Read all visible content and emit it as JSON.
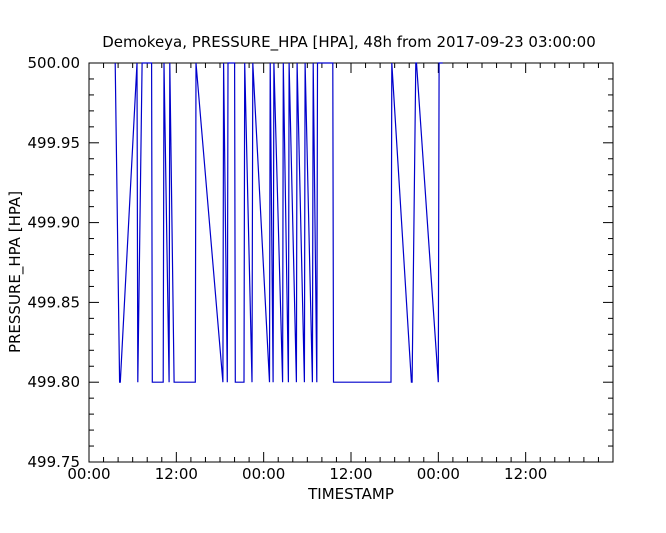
{
  "chart_data": {
    "type": "line",
    "title": "Demokeya, PRESSURE_HPA [HPA], 48h from  2017-09-23 03:00:00",
    "xlabel": "TIMESTAMP",
    "ylabel": "PRESSURE_HPA [HPA]",
    "xticks": [
      "00:00",
      "12:00",
      "00:00",
      "12:00",
      "00:00",
      "12:00"
    ],
    "yticks": [
      "499.75",
      "499.80",
      "499.85",
      "499.90",
      "499.95",
      "500.00"
    ],
    "xlim_hours": [
      0,
      72
    ],
    "ylim": [
      499.75,
      500.0
    ],
    "grid": false,
    "line_color": "#0000cc",
    "series": [
      {
        "x_hours": [
          3.6,
          4.2,
          4.3,
          6.6,
          6.7,
          7.3,
          8.6,
          8.7,
          10.2,
          10.3,
          11.0,
          11.1,
          11.7,
          11.8,
          14.6,
          14.7,
          18.4,
          18.5,
          19.0,
          19.1,
          20.0,
          20.1,
          21.3,
          21.4,
          22.4,
          22.5,
          24.8,
          24.9,
          25.3,
          25.4,
          26.6,
          26.7,
          27.4,
          27.5,
          28.5,
          28.6,
          29.6,
          29.7,
          30.7,
          30.8,
          31.3,
          31.4,
          33.5,
          33.6,
          41.5,
          41.6,
          44.3,
          44.4,
          44.9,
          45.0,
          48.0,
          48.1,
          48.6
        ],
        "values": [
          500.0,
          499.8,
          499.8,
          500.0,
          499.8,
          500.0,
          500.0,
          499.8,
          499.8,
          500.0,
          499.8,
          500.0,
          499.8,
          499.8,
          499.8,
          500.0,
          499.8,
          500.0,
          499.8,
          500.0,
          500.0,
          499.8,
          499.8,
          500.0,
          499.8,
          500.0,
          499.8,
          500.0,
          499.8,
          500.0,
          499.8,
          500.0,
          499.8,
          500.0,
          499.8,
          500.0,
          499.8,
          500.0,
          499.8,
          500.0,
          499.8,
          500.0,
          500.0,
          499.8,
          499.8,
          500.0,
          499.8,
          499.8,
          500.0,
          500.0,
          499.8,
          500.0,
          500.0
        ]
      }
    ]
  }
}
